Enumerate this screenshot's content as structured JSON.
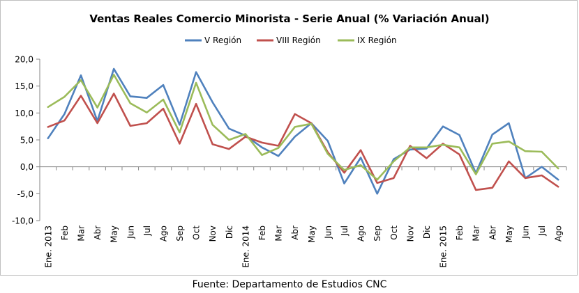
{
  "chart_data": {
    "type": "line",
    "title": "Ventas Reales Comercio Minorista - Serie Anual (% Variación Anual)",
    "xlabel": "",
    "ylabel": "",
    "ylim": [
      -10,
      20
    ],
    "yticks": [
      "20,0",
      "15,0",
      "10,0",
      "5,0",
      "0,0",
      "-5,0",
      "-10,0"
    ],
    "ytick_values": [
      20,
      15,
      10,
      5,
      0,
      -5,
      -10
    ],
    "legend_position": "top-center",
    "grid": false,
    "categories": [
      "Ene. 2013",
      "Feb",
      "Mar",
      "Abr",
      "May",
      "Jun",
      "Jul",
      "Ago",
      "Sep",
      "Oct",
      "Nov",
      "Dic",
      "Ene. 2014",
      "Feb",
      "Mar",
      "Abr",
      "May",
      "Jun",
      "Jul",
      "Ago",
      "Sep",
      "Oct",
      "Nov",
      "Dic",
      "Ene. 2015",
      "Feb",
      "Mar",
      "Abr",
      "May",
      "Jun",
      "Jul",
      "Ago"
    ],
    "series": [
      {
        "name": "V Región",
        "color": "#4f81bd",
        "values": [
          5.3,
          9.8,
          17.0,
          8.5,
          18.2,
          13.1,
          12.8,
          15.2,
          7.8,
          17.6,
          12.0,
          7.1,
          5.8,
          3.6,
          2.0,
          5.6,
          8.1,
          4.8,
          -3.1,
          1.7,
          -5.0,
          1.4,
          3.2,
          3.4,
          7.5,
          5.9,
          -1.2,
          6.0,
          8.1,
          -2.1,
          0.0,
          -2.4
        ]
      },
      {
        "name": "VIII Región",
        "color": "#c0504d",
        "values": [
          7.4,
          8.6,
          13.2,
          8.1,
          13.6,
          7.6,
          8.1,
          10.8,
          4.3,
          11.7,
          4.2,
          3.3,
          5.6,
          4.5,
          3.9,
          9.8,
          8.1,
          2.7,
          -1.1,
          3.1,
          -3.0,
          -2.1,
          3.9,
          1.6,
          4.3,
          2.3,
          -4.3,
          -3.9,
          1.0,
          -2.1,
          -1.6,
          -3.7
        ]
      },
      {
        "name": "IX Región",
        "color": "#9bbb59",
        "values": [
          11.1,
          13.0,
          16.1,
          11.0,
          17.1,
          11.8,
          10.1,
          12.5,
          6.4,
          15.6,
          7.8,
          5.0,
          6.1,
          2.2,
          3.5,
          7.4,
          8.0,
          2.4,
          -0.6,
          0.3,
          -2.4,
          1.0,
          3.6,
          3.6,
          4.1,
          3.6,
          -1.4,
          4.3,
          4.7,
          2.9,
          2.8,
          -0.3
        ]
      }
    ]
  },
  "footer": {
    "source": "Fuente: Departamento de Estudios CNC"
  }
}
